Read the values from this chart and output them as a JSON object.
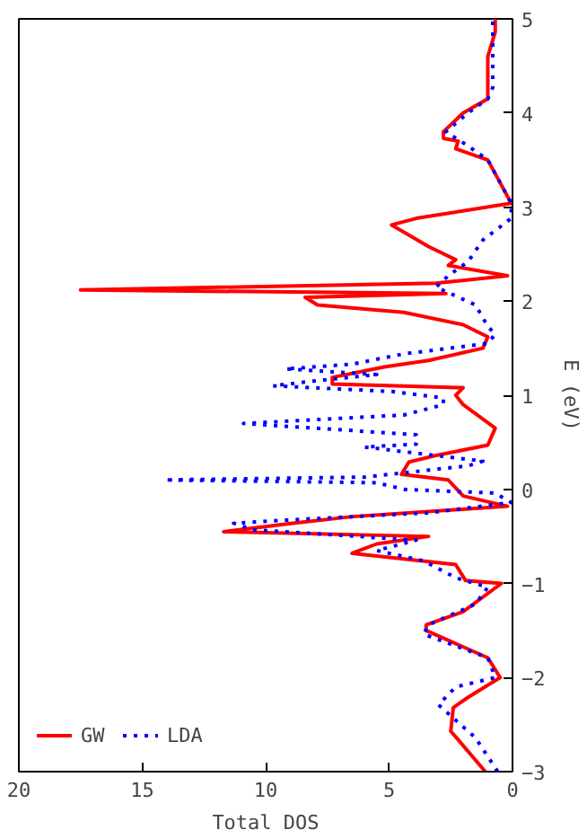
{
  "chart_data": {
    "type": "line",
    "xlabel": "Total DOS",
    "ylabel": "E (eV)",
    "xlim": [
      20,
      0
    ],
    "ylim": [
      -3,
      5
    ],
    "xticks": [
      20,
      15,
      10,
      5,
      0
    ],
    "yticks": [
      -3,
      -2,
      -1,
      0,
      1,
      2,
      3,
      4,
      5
    ],
    "grid": false,
    "legend": "bottom left",
    "marker": "none",
    "series": [
      {
        "name": "GW",
        "color": "#ff0000",
        "line_style": "solid",
        "values": [
          -3,
          -2.57,
          -2.32,
          -2.21,
          -2.0,
          -1.79,
          -1.5,
          -1.44,
          -1.3,
          -1.0,
          -0.97,
          -0.8,
          -0.68,
          -0.58,
          -0.5,
          -0.45,
          -0.36,
          -0.29,
          -0.18,
          -0.07,
          0.1,
          0.16,
          0.29,
          0.36,
          0.47,
          0.65,
          0.9,
          1.0,
          1.08,
          1.12,
          1.19,
          1.3,
          1.37,
          1.5,
          1.62,
          1.75,
          1.88,
          1.96,
          2.04,
          2.08,
          2.12,
          2.19,
          2.27,
          2.38,
          2.44,
          2.58,
          2.81,
          2.88,
          3.04,
          3.5,
          3.62,
          3.7,
          3.73,
          3.8,
          4.0,
          4.15,
          4.3,
          4.6,
          4.86,
          5
        ],
        "x": [
          1.1,
          2.5,
          2.4,
          1.8,
          0.5,
          1.0,
          3.5,
          3.5,
          2.0,
          0.45,
          1.9,
          2.3,
          6.5,
          5.5,
          3.4,
          11.7,
          8.9,
          6.5,
          0.2,
          2.0,
          2.6,
          4.5,
          4.2,
          3.1,
          1.0,
          0.7,
          2.0,
          2.3,
          2.0,
          7.3,
          7.3,
          5.2,
          3.4,
          1.2,
          1.0,
          2.0,
          4.4,
          7.9,
          8.4,
          2.7,
          17.5,
          3.1,
          0.2,
          2.6,
          2.3,
          3.4,
          4.9,
          3.9,
          0.05,
          1.0,
          2.3,
          2.2,
          2.8,
          2.8,
          2.0,
          1.0,
          1.0,
          1.0,
          0.7,
          0.7
        ]
      },
      {
        "name": "LDA",
        "color": "#0000ff",
        "line_style": "dotted",
        "values": [
          -3,
          -2.64,
          -2.29,
          -2.1,
          -2.0,
          -1.79,
          -1.54,
          -1.44,
          -1.22,
          -1.04,
          -0.94,
          -0.76,
          -0.65,
          -0.54,
          -0.43,
          -0.36,
          -0.32,
          -0.25,
          -0.14,
          -0.04,
          0.0,
          0.07,
          0.1,
          0.13,
          0.25,
          0.3,
          0.4,
          0.45,
          0.48,
          0.58,
          0.7,
          0.79,
          0.9,
          0.97,
          1.04,
          1.1,
          1.15,
          1.22,
          1.28,
          1.33,
          1.44,
          1.55,
          1.65,
          1.73,
          1.96,
          2.15,
          2.27,
          2.42,
          2.65,
          2.88,
          3.04,
          3.5,
          3.65,
          3.8,
          4.0,
          4.15,
          4.27,
          4.6,
          5
        ],
        "x": [
          0.6,
          1.5,
          3.0,
          2.3,
          0.7,
          1.0,
          3.6,
          3.4,
          1.5,
          1.0,
          2.3,
          3.6,
          5.5,
          3.9,
          10.5,
          11.3,
          8.7,
          3.4,
          0.05,
          0.7,
          4.4,
          5.5,
          14.1,
          6.0,
          1.8,
          1.2,
          4.4,
          6.0,
          3.9,
          3.9,
          10.9,
          4.4,
          2.8,
          2.8,
          4.9,
          9.7,
          8.1,
          5.5,
          9.2,
          6.5,
          4.4,
          1.0,
          0.7,
          1.0,
          1.5,
          3.1,
          2.6,
          1.8,
          1.2,
          0.05,
          0.05,
          1.0,
          1.8,
          2.7,
          1.8,
          1.0,
          0.8,
          0.8,
          0.8
        ]
      }
    ]
  }
}
